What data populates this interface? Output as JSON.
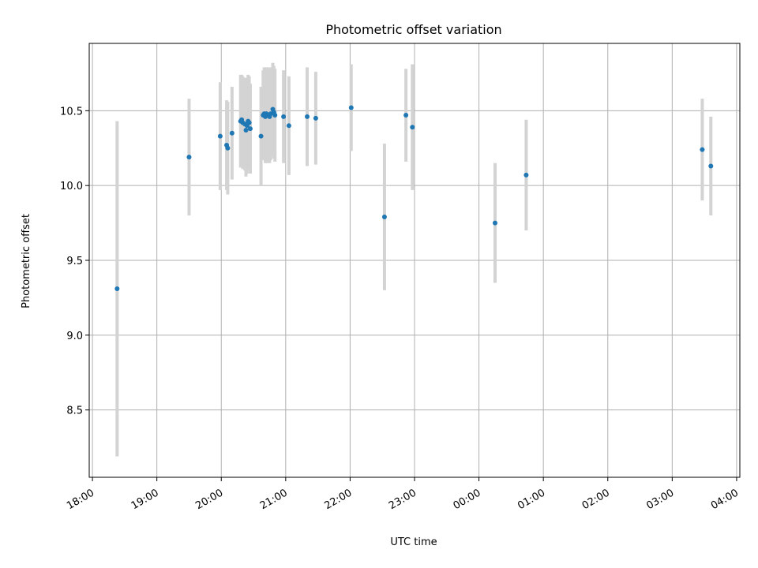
{
  "chart_data": {
    "type": "scatter",
    "title": "Photometric offset variation",
    "xlabel": "UTC time",
    "ylabel": "Photometric offset",
    "x_axis": "time",
    "x_range": [
      "17:57",
      "04:03"
    ],
    "x_ticks": [
      "18:00",
      "19:00",
      "20:00",
      "21:00",
      "22:00",
      "23:00",
      "00:00",
      "01:00",
      "02:00",
      "03:00",
      "04:00"
    ],
    "ylim": [
      8.05,
      10.95
    ],
    "y_ticks": [
      8.5,
      9.0,
      9.5,
      10.0,
      10.5
    ],
    "y_tick_labels": [
      "8.5",
      "9.0",
      "9.5",
      "10.0",
      "10.5"
    ],
    "grid": true,
    "colors": {
      "points": "#1f77b4",
      "errorbars": "#d3d3d3"
    },
    "points": [
      {
        "x": "18:23",
        "y": 9.31,
        "err": 1.12
      },
      {
        "x": "19:30",
        "y": 10.19,
        "err": 0.39
      },
      {
        "x": "19:59",
        "y": 10.33,
        "err": 0.36
      },
      {
        "x": "20:05",
        "y": 10.27,
        "err": 0.3
      },
      {
        "x": "20:06",
        "y": 10.25,
        "err": 0.31
      },
      {
        "x": "20:10",
        "y": 10.35,
        "err": 0.31
      },
      {
        "x": "20:18",
        "y": 10.43,
        "err": 0.31
      },
      {
        "x": "20:19",
        "y": 10.44,
        "err": 0.3
      },
      {
        "x": "20:20",
        "y": 10.42,
        "err": 0.31
      },
      {
        "x": "20:22",
        "y": 10.41,
        "err": 0.31
      },
      {
        "x": "20:23",
        "y": 10.37,
        "err": 0.31
      },
      {
        "x": "20:24",
        "y": 10.4,
        "err": 0.32
      },
      {
        "x": "20:25",
        "y": 10.43,
        "err": 0.31
      },
      {
        "x": "20:26",
        "y": 10.42,
        "err": 0.31
      },
      {
        "x": "20:27",
        "y": 10.38,
        "err": 0.3
      },
      {
        "x": "20:37",
        "y": 10.33,
        "err": 0.33
      },
      {
        "x": "20:39",
        "y": 10.47,
        "err": 0.3
      },
      {
        "x": "20:40",
        "y": 10.48,
        "err": 0.31
      },
      {
        "x": "20:41",
        "y": 10.46,
        "err": 0.31
      },
      {
        "x": "20:42",
        "y": 10.48,
        "err": 0.31
      },
      {
        "x": "20:43",
        "y": 10.47,
        "err": 0.32
      },
      {
        "x": "20:44",
        "y": 10.47,
        "err": 0.31
      },
      {
        "x": "20:45",
        "y": 10.46,
        "err": 0.31
      },
      {
        "x": "20:46",
        "y": 10.48,
        "err": 0.31
      },
      {
        "x": "20:48",
        "y": 10.51,
        "err": 0.31
      },
      {
        "x": "20:49",
        "y": 10.49,
        "err": 0.31
      },
      {
        "x": "20:50",
        "y": 10.47,
        "err": 0.31
      },
      {
        "x": "20:58",
        "y": 10.46,
        "err": 0.31
      },
      {
        "x": "21:03",
        "y": 10.4,
        "err": 0.33
      },
      {
        "x": "21:20",
        "y": 10.46,
        "err": 0.33
      },
      {
        "x": "21:28",
        "y": 10.45,
        "err": 0.31
      },
      {
        "x": "22:01",
        "y": 10.52,
        "err": 0.29
      },
      {
        "x": "22:32",
        "y": 9.79,
        "err": 0.49
      },
      {
        "x": "22:52",
        "y": 10.47,
        "err": 0.31
      },
      {
        "x": "22:58",
        "y": 10.39,
        "err": 0.42
      },
      {
        "x": "00:15",
        "y": 9.75,
        "err": 0.4
      },
      {
        "x": "00:44",
        "y": 10.07,
        "err": 0.37
      },
      {
        "x": "03:28",
        "y": 10.24,
        "err": 0.34
      },
      {
        "x": "03:36",
        "y": 10.13,
        "err": 0.33
      }
    ]
  }
}
